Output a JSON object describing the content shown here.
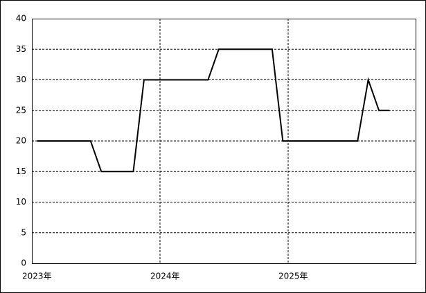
{
  "chart_data": {
    "type": "line",
    "categories": [
      "2023年",
      null,
      null,
      null,
      null,
      null,
      null,
      null,
      null,
      null,
      null,
      null,
      "2024年",
      null,
      null,
      null,
      null,
      null,
      null,
      null,
      null,
      null,
      null,
      null,
      "2025年",
      null,
      null,
      null,
      null,
      null,
      null,
      null,
      null,
      null
    ],
    "series": [
      {
        "color": "#000000",
        "values": [
          20,
          20,
          20,
          20,
          20,
          20,
          15,
          15,
          15,
          15,
          30,
          30,
          30,
          30,
          30,
          30,
          30,
          35,
          35,
          35,
          35,
          35,
          35,
          20,
          20,
          20,
          20,
          20,
          20,
          20,
          20,
          30,
          25,
          25
        ]
      }
    ],
    "ylim": [
      0,
      40
    ],
    "yticks": [
      0,
      5,
      10,
      15,
      20,
      25,
      30,
      35,
      40
    ],
    "grid": true
  }
}
